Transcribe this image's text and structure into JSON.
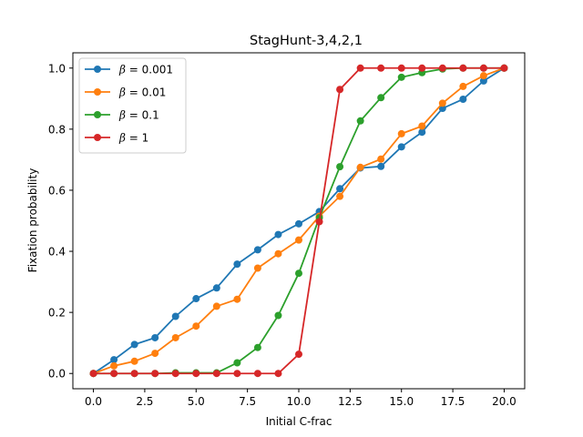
{
  "chart_data": {
    "type": "line",
    "title": "StagHunt-3,4,2,1",
    "xlabel": "Initial C-frac",
    "ylabel": "Fixation probability",
    "xlim": [
      -1.0,
      21.0
    ],
    "ylim": [
      -0.05,
      1.05
    ],
    "xticks": [
      "0.0",
      "2.5",
      "5.0",
      "7.5",
      "10.0",
      "12.5",
      "15.0",
      "17.5",
      "20.0"
    ],
    "xtick_values": [
      0,
      2.5,
      5,
      7.5,
      10,
      12.5,
      15,
      17.5,
      20
    ],
    "yticks": [
      "0.0",
      "0.2",
      "0.4",
      "0.6",
      "0.8",
      "1.0"
    ],
    "ytick_values": [
      0,
      0.2,
      0.4,
      0.6,
      0.8,
      1.0
    ],
    "grid": false,
    "legend_position": "top-left",
    "x": [
      0,
      1,
      2,
      3,
      4,
      5,
      6,
      7,
      8,
      9,
      10,
      11,
      12,
      13,
      14,
      15,
      16,
      17,
      18,
      19,
      20
    ],
    "series": [
      {
        "name": "β = 0.001",
        "legend_beta": "β",
        "legend_value": "= 0.001",
        "color": "#1f77b4",
        "values": [
          0.0,
          0.045,
          0.095,
          0.117,
          0.187,
          0.245,
          0.28,
          0.358,
          0.405,
          0.455,
          0.49,
          0.53,
          0.605,
          0.673,
          0.678,
          0.742,
          0.79,
          0.868,
          0.898,
          0.958,
          1.0
        ]
      },
      {
        "name": "β = 0.01",
        "legend_beta": "β",
        "legend_value": "= 0.01",
        "color": "#ff7f0e",
        "values": [
          0.0,
          0.025,
          0.04,
          0.066,
          0.117,
          0.155,
          0.22,
          0.243,
          0.345,
          0.392,
          0.437,
          0.515,
          0.58,
          0.675,
          0.702,
          0.785,
          0.81,
          0.885,
          0.94,
          0.975,
          1.0
        ]
      },
      {
        "name": "β = 0.1",
        "legend_beta": "β",
        "legend_value": "= 0.1",
        "color": "#2ca02c",
        "values": [
          0.0,
          0.0,
          0.0,
          0.0,
          0.002,
          0.002,
          0.002,
          0.035,
          0.085,
          0.19,
          0.328,
          0.51,
          0.677,
          0.827,
          0.903,
          0.97,
          0.985,
          0.997,
          1.0,
          1.0,
          1.0
        ]
      },
      {
        "name": "β = 1",
        "legend_beta": "β",
        "legend_value": "= 1",
        "color": "#d62728",
        "values": [
          0.0,
          0.0,
          0.0,
          0.0,
          0.0,
          0.0,
          0.0,
          0.0,
          0.0,
          0.0,
          0.063,
          0.497,
          0.93,
          1.0,
          1.0,
          1.0,
          1.0,
          1.0,
          1.0,
          1.0,
          1.0
        ]
      }
    ]
  }
}
